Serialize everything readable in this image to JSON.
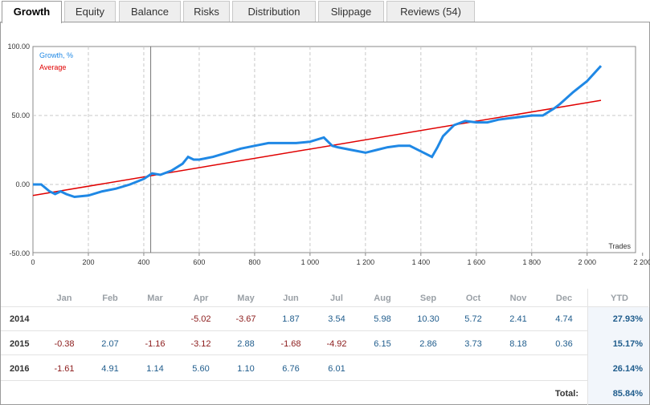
{
  "tabs": [
    {
      "label": "Growth",
      "active": true
    },
    {
      "label": "Equity",
      "active": false
    },
    {
      "label": "Balance",
      "active": false
    },
    {
      "label": "Risks",
      "active": false
    },
    {
      "label": "Distribution",
      "active": false
    },
    {
      "label": "Slippage",
      "active": false
    },
    {
      "label": "Reviews (54)",
      "active": false
    }
  ],
  "chart_data": {
    "type": "line",
    "xlabel": "Trades",
    "xlim": [
      0,
      2200
    ],
    "ylim": [
      -50,
      100
    ],
    "x_ticks": [
      "0",
      "200",
      "400",
      "600",
      "800",
      "1 000",
      "1 200",
      "1 400",
      "1 600",
      "1 800",
      "2 000",
      "2 200"
    ],
    "x_tick_values": [
      0,
      200,
      400,
      600,
      800,
      1000,
      1200,
      1400,
      1600,
      1800,
      2000,
      2200
    ],
    "y_ticks": [
      "100.00",
      "50.00",
      "0.00",
      "-50.00"
    ],
    "y_tick_values": [
      100,
      50,
      0,
      -50
    ],
    "grid": true,
    "legend_position": "top-left",
    "marker_x": 425,
    "series": [
      {
        "name": "Growth, %",
        "color": "#1f88e5",
        "x": [
          0,
          30,
          60,
          80,
          100,
          120,
          150,
          200,
          250,
          300,
          350,
          400,
          430,
          460,
          500,
          540,
          560,
          580,
          600,
          650,
          700,
          750,
          800,
          850,
          900,
          950,
          1000,
          1050,
          1080,
          1100,
          1150,
          1200,
          1240,
          1280,
          1320,
          1360,
          1400,
          1440,
          1460,
          1480,
          1520,
          1560,
          1600,
          1640,
          1680,
          1720,
          1760,
          1800,
          1840,
          1880,
          1900,
          1950,
          2000,
          2050
        ],
        "y": [
          0,
          0,
          -5,
          -7,
          -5,
          -7,
          -9,
          -8,
          -5,
          -3,
          0,
          4,
          8,
          7,
          10,
          15,
          20,
          18,
          18,
          20,
          23,
          26,
          28,
          30,
          30,
          30,
          31,
          34,
          28,
          27,
          25,
          23,
          25,
          27,
          28,
          28,
          24,
          20,
          27,
          35,
          43,
          46,
          45,
          45,
          47,
          48,
          49,
          50,
          50,
          55,
          58,
          67,
          75,
          86
        ]
      },
      {
        "name": "Average",
        "color": "#e00000",
        "x": [
          0,
          2050
        ],
        "y": [
          -8,
          61
        ]
      }
    ]
  },
  "table": {
    "months": [
      "Jan",
      "Feb",
      "Mar",
      "Apr",
      "May",
      "Jun",
      "Jul",
      "Aug",
      "Sep",
      "Oct",
      "Nov",
      "Dec"
    ],
    "ytd_label": "YTD",
    "rows": [
      {
        "year": "2014",
        "values": [
          "",
          "",
          "",
          "-5.02",
          "-3.67",
          "1.87",
          "3.54",
          "5.98",
          "10.30",
          "5.72",
          "2.41",
          "4.74"
        ],
        "ytd": "27.93%"
      },
      {
        "year": "2015",
        "values": [
          "-0.38",
          "2.07",
          "-1.16",
          "-3.12",
          "2.88",
          "-1.68",
          "-4.92",
          "6.15",
          "2.86",
          "3.73",
          "8.18",
          "0.36"
        ],
        "ytd": "15.17%"
      },
      {
        "year": "2016",
        "values": [
          "-1.61",
          "4.91",
          "1.14",
          "5.60",
          "1.10",
          "6.76",
          "6.01",
          "",
          "",
          "",
          "",
          ""
        ],
        "ytd": "26.14%"
      }
    ],
    "total_label": "Total:",
    "total_value": "85.84%"
  }
}
